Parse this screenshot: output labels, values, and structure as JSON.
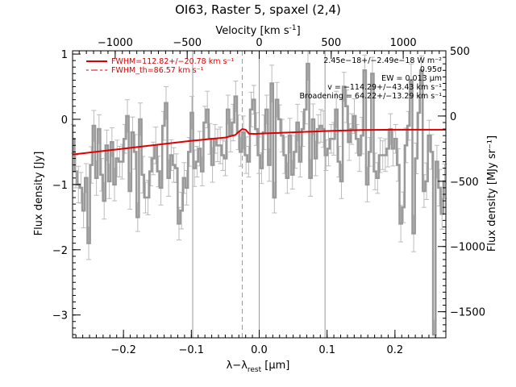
{
  "chart_data": {
    "type": "line",
    "title": "OI63, Raster 5, spaxel (2,4)",
    "xlabel": "λ−λ",
    "xlabel_sub": "rest",
    "xlabel_unit": " [μm]",
    "ylabel_left": "Flux density [Jy]",
    "ylabel_right": "Flux density [MJy sr⁻¹]",
    "top_axis_label": "Velocity [km s",
    "top_axis_label_sup": "-1",
    "top_axis_label_end": "]",
    "xlim": [
      -0.275,
      0.275
    ],
    "ylim": [
      -3.35,
      1.05
    ],
    "velocity_range": [
      -1296,
      1296
    ],
    "right_axis_range": [
      -1700,
      500
    ],
    "x_ticks": [
      -0.2,
      -0.1,
      0.0,
      0.1,
      0.2
    ],
    "x_tick_labels": [
      "−0.2",
      "−0.1",
      "0.0",
      "0.1",
      "0.2"
    ],
    "y_ticks": [
      1,
      0,
      -1,
      -2,
      -3
    ],
    "y_tick_labels": [
      "1",
      "0",
      "−1",
      "−2",
      "−3"
    ],
    "velocity_ticks": [
      -1000,
      -500,
      0,
      500,
      1000
    ],
    "velocity_tick_labels": [
      "−1000",
      "−500",
      "0",
      "500",
      "1000"
    ],
    "right_ticks": [
      500,
      0,
      -500,
      -1000,
      -1500
    ],
    "right_tick_labels": [
      "500",
      "0",
      "−500",
      "−1000",
      "−1500"
    ],
    "vertical_lines": [
      -0.098,
      0.0,
      0.097
    ],
    "dashed_line_x": -0.025,
    "annotations": [
      "2.45e−18+/−2.49e−18 W m⁻²",
      "0.95σ",
      "EW    = 0.013 μm",
      "v = −114.29+/−43.43 km s⁻¹",
      "Broadening = 64.22+/−13.29 km s⁻¹"
    ],
    "legend": [
      "FWHM=112.82+/−20.78 km s⁻¹",
      "FWHM_th=86.57 km s⁻¹"
    ],
    "colors": {
      "data": "#999999",
      "fit": "#dd0000",
      "lines": "#999999",
      "axes": "#000000"
    },
    "series": [
      {
        "name": "data",
        "x": [
          -0.274,
          -0.2702,
          -0.2664,
          -0.2626,
          -0.2588,
          -0.255,
          -0.2512,
          -0.2474,
          -0.2436,
          -0.2398,
          -0.236,
          -0.2322,
          -0.2284,
          -0.2246,
          -0.2208,
          -0.217,
          -0.2132,
          -0.2094,
          -0.2056,
          -0.2018,
          -0.198,
          -0.1942,
          -0.1904,
          -0.1866,
          -0.1828,
          -0.179,
          -0.1752,
          -0.1714,
          -0.1676,
          -0.1638,
          -0.16,
          -0.1562,
          -0.1524,
          -0.1486,
          -0.1448,
          -0.141,
          -0.1372,
          -0.1334,
          -0.1296,
          -0.1258,
          -0.122,
          -0.1182,
          -0.1144,
          -0.1106,
          -0.1068,
          -0.103,
          -0.0992,
          -0.0954,
          -0.0916,
          -0.0878,
          -0.084,
          -0.0802,
          -0.0764,
          -0.0726,
          -0.0688,
          -0.065,
          -0.0612,
          -0.0574,
          -0.0536,
          -0.0498,
          -0.046,
          -0.0422,
          -0.0384,
          -0.0346,
          -0.0308,
          -0.027,
          -0.0232,
          -0.0194,
          -0.0156,
          -0.0118,
          -0.008,
          -0.0042,
          -0.0004,
          0.0034,
          0.0072,
          0.011,
          0.0148,
          0.0186,
          0.0224,
          0.0262,
          0.03,
          0.0338,
          0.0376,
          0.0414,
          0.0452,
          0.049,
          0.0528,
          0.0566,
          0.0604,
          0.0642,
          0.068,
          0.0718,
          0.0756,
          0.0794,
          0.0832,
          0.087,
          0.0908,
          0.0946,
          0.0984,
          0.1022,
          0.106,
          0.1098,
          0.1136,
          0.1174,
          0.1212,
          0.125,
          0.1288,
          0.1326,
          0.1364,
          0.1402,
          0.144,
          0.1478,
          0.1516,
          0.1554,
          0.1592,
          0.163,
          0.1668,
          0.1706,
          0.1744,
          0.1782,
          0.182,
          0.1858,
          0.1896,
          0.1934,
          0.1972,
          0.201,
          0.2048,
          0.2086,
          0.2124,
          0.2162,
          0.22,
          0.2238,
          0.2276,
          0.2314,
          0.2352,
          0.239,
          0.2428,
          0.2466,
          0.2504,
          0.2542,
          0.258,
          0.2618,
          0.2656,
          0.2694,
          0.2732
        ],
        "y": [
          -0.3,
          -0.8,
          -1.0,
          -1.05,
          -1.4,
          -0.9,
          -1.9,
          -0.7,
          -0.1,
          -0.9,
          -0.15,
          -0.85,
          -1.25,
          -0.4,
          -0.95,
          -0.35,
          -1.0,
          -0.6,
          -0.65,
          -0.65,
          -0.3,
          0.05,
          -1.1,
          -0.2,
          -0.5,
          -1.5,
          0.0,
          -0.85,
          -1.2,
          -1.2,
          -0.8,
          -0.6,
          -0.4,
          -0.8,
          -1.05,
          -0.1,
          0.25,
          -0.9,
          -0.55,
          -0.7,
          -0.75,
          -1.6,
          -1.4,
          -0.9,
          -1.05,
          -0.5,
          0.1,
          -0.75,
          -0.65,
          -0.45,
          -0.8,
          -0.05,
          0.15,
          -0.3,
          -0.7,
          -0.3,
          -0.4,
          -0.4,
          -0.55,
          -0.6,
          0.15,
          -0.25,
          -0.05,
          0.35,
          -0.2,
          -0.5,
          -0.2,
          -0.55,
          -0.65,
          0.15,
          0.3,
          -0.15,
          -0.55,
          -0.75,
          -0.2,
          0.15,
          -0.7,
          0.55,
          -1.2,
          0.3,
          0.0,
          -0.25,
          -0.55,
          -0.9,
          -0.25,
          -0.85,
          -0.5,
          -0.05,
          -0.65,
          -0.15,
          0.15,
          0.85,
          -0.9,
          0.0,
          -0.6,
          -0.15,
          -0.1,
          -0.15,
          -0.55,
          -0.45,
          -0.3,
          -0.3,
          0.15,
          -0.65,
          -0.95,
          0.5,
          0.2,
          -0.35,
          -0.15,
          0.05,
          -0.3,
          -0.55,
          -0.25,
          0.75,
          -1.0,
          -0.5,
          0.7,
          -0.8,
          -0.9,
          -0.55,
          -0.55,
          -0.55,
          -0.45,
          -0.15,
          -0.45,
          -0.3,
          -0.7,
          -1.6,
          -1.35,
          -0.4,
          -0.1,
          0.6,
          -1.75,
          -0.6,
          0.1,
          0.75,
          -1.1,
          -0.95,
          -0.25,
          -0.5,
          -3.3,
          -0.65,
          -1.05,
          -1.45,
          -0.95
        ]
      },
      {
        "name": "fit",
        "x": [
          -0.275,
          -0.2,
          -0.1,
          -0.05,
          -0.035,
          -0.03,
          -0.025,
          -0.02,
          -0.015,
          -0.005,
          0.0,
          0.05,
          0.1,
          0.15,
          0.2,
          0.275
        ],
        "y": [
          -0.54,
          -0.45,
          -0.33,
          -0.28,
          -0.24,
          -0.19,
          -0.15,
          -0.16,
          -0.22,
          -0.225,
          -0.22,
          -0.2,
          -0.18,
          -0.165,
          -0.16,
          -0.16
        ]
      }
    ]
  }
}
